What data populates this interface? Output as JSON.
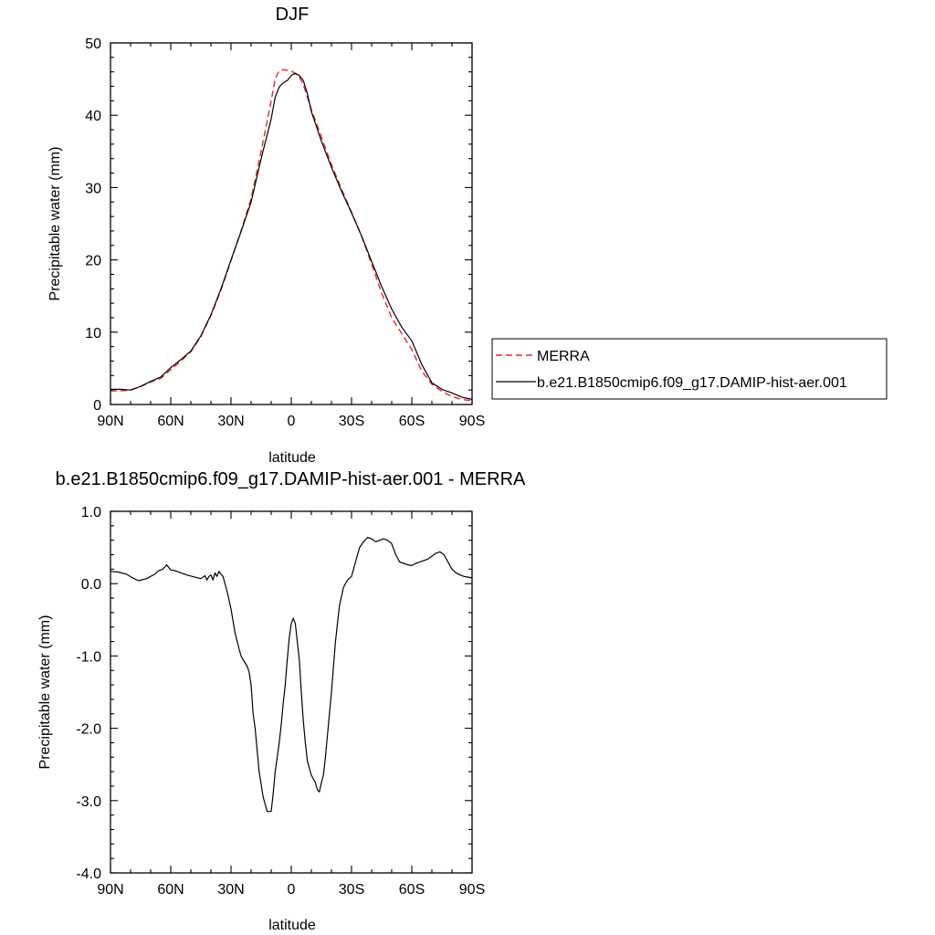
{
  "chart_data": [
    {
      "type": "line",
      "title": "DJF",
      "xlabel": "latitude",
      "ylabel": "Precipitable water (mm)",
      "xlim": [
        90,
        -90
      ],
      "ylim": [
        0,
        50
      ],
      "xticks": [
        90,
        60,
        30,
        0,
        -30,
        -60,
        -90
      ],
      "xtick_labels": [
        "90N",
        "60N",
        "30N",
        "0",
        "30S",
        "60S",
        "90S"
      ],
      "yticks": [
        0,
        10,
        20,
        30,
        40,
        50
      ],
      "ytick_labels": [
        "0",
        "10",
        "20",
        "30",
        "40",
        "50"
      ],
      "legend_position": "right",
      "series": [
        {
          "name": "MERRA",
          "color": "#e8262a",
          "dash": "dashed",
          "x": [
            90,
            85,
            80,
            75,
            70,
            65,
            60,
            55,
            50,
            45,
            40,
            35,
            30,
            25,
            20,
            15,
            10,
            8,
            6,
            4,
            2,
            0,
            -2,
            -4,
            -6,
            -8,
            -10,
            -15,
            -20,
            -25,
            -30,
            -35,
            -40,
            -45,
            -50,
            -55,
            -60,
            -65,
            -70,
            -75,
            -80,
            -85,
            -90
          ],
          "values": [
            1.9,
            1.9,
            2.0,
            2.5,
            3.1,
            3.6,
            4.8,
            6.0,
            7.3,
            9.4,
            12.3,
            15.8,
            19.9,
            24.0,
            28.5,
            35.0,
            42.0,
            45.0,
            46.2,
            46.3,
            46.2,
            46.1,
            45.8,
            45.3,
            44.2,
            42.5,
            40.8,
            37.0,
            33.2,
            29.8,
            26.6,
            23.3,
            19.4,
            15.4,
            12.0,
            9.8,
            7.6,
            4.6,
            2.8,
            1.8,
            1.1,
            0.7,
            0.5
          ]
        },
        {
          "name": "b.e21.B1850cmip6.f09_g17.DAMIP-hist-aer.001",
          "color": "#000000",
          "dash": "solid",
          "x": [
            90,
            85,
            80,
            75,
            70,
            65,
            60,
            55,
            50,
            45,
            40,
            35,
            30,
            25,
            20,
            15,
            10,
            8,
            6,
            4,
            2,
            0,
            -2,
            -4,
            -6,
            -8,
            -10,
            -15,
            -20,
            -25,
            -30,
            -35,
            -40,
            -45,
            -50,
            -55,
            -60,
            -65,
            -70,
            -75,
            -80,
            -85,
            -90
          ],
          "values": [
            2.1,
            2.1,
            2.0,
            2.5,
            3.2,
            3.8,
            5.1,
            6.2,
            7.4,
            9.5,
            12.4,
            16.0,
            20.0,
            23.9,
            28.0,
            34.0,
            39.5,
            42.5,
            43.9,
            44.5,
            44.8,
            45.5,
            45.8,
            45.5,
            44.8,
            43.0,
            40.5,
            36.4,
            32.8,
            29.5,
            26.5,
            23.3,
            19.8,
            16.3,
            13.2,
            10.7,
            8.8,
            5.5,
            3.0,
            2.1,
            1.6,
            1.0,
            0.7
          ]
        }
      ]
    },
    {
      "type": "line",
      "title": "b.e21.B1850cmip6.f09_g17.DAMIP-hist-aer.001 - MERRA",
      "xlabel": "latitude",
      "ylabel": "Precipitable water (mm)",
      "xlim": [
        90,
        -90
      ],
      "ylim": [
        -4.0,
        1.0
      ],
      "xticks": [
        90,
        60,
        30,
        0,
        -30,
        -60,
        -90
      ],
      "xtick_labels": [
        "90N",
        "60N",
        "30N",
        "0",
        "30S",
        "60S",
        "90S"
      ],
      "yticks": [
        -4.0,
        -3.0,
        -2.0,
        -1.0,
        0.0,
        1.0
      ],
      "ytick_labels": [
        "-4.0",
        "-3.0",
        "-2.0",
        "-1.0",
        "0.0",
        "1.0"
      ],
      "series": [
        {
          "color": "#000000",
          "dash": "solid",
          "x": [
            90,
            86,
            82,
            79,
            76,
            72,
            68,
            66,
            64,
            62,
            60,
            58,
            55,
            52,
            48,
            45,
            43,
            42,
            41,
            40,
            39,
            38,
            37,
            36,
            35,
            34,
            32,
            30,
            28,
            26,
            25,
            24,
            22,
            21,
            20,
            19,
            18,
            16,
            14,
            12,
            10,
            9,
            8,
            7,
            6,
            5,
            4,
            3,
            2,
            1,
            0,
            -1,
            -2,
            -3,
            -4,
            -5,
            -6,
            -7,
            -8,
            -9,
            -10,
            -11,
            -12,
            -13,
            -14,
            -15,
            -16,
            -17,
            -18,
            -19,
            -20,
            -22,
            -24,
            -26,
            -28,
            -30,
            -32,
            -34,
            -36,
            -38,
            -40,
            -42,
            -44,
            -46,
            -48,
            -50,
            -52,
            -54,
            -56,
            -58,
            -60,
            -62,
            -64,
            -66,
            -68,
            -70,
            -72,
            -74,
            -76,
            -78,
            -80,
            -82,
            -84,
            -86,
            -88,
            -90
          ],
          "values": [
            0.17,
            0.16,
            0.13,
            0.08,
            0.04,
            0.07,
            0.13,
            0.18,
            0.2,
            0.26,
            0.19,
            0.18,
            0.15,
            0.12,
            0.09,
            0.07,
            0.11,
            0.05,
            0.1,
            0.12,
            0.05,
            0.15,
            0.1,
            0.17,
            0.13,
            0.1,
            -0.1,
            -0.35,
            -0.68,
            -0.9,
            -1.0,
            -1.05,
            -1.14,
            -1.22,
            -1.4,
            -1.8,
            -2.0,
            -2.6,
            -2.95,
            -3.15,
            -3.15,
            -2.9,
            -2.6,
            -2.4,
            -2.2,
            -1.95,
            -1.65,
            -1.4,
            -1.05,
            -0.75,
            -0.55,
            -0.48,
            -0.55,
            -0.8,
            -1.05,
            -1.5,
            -1.9,
            -2.2,
            -2.45,
            -2.55,
            -2.65,
            -2.7,
            -2.75,
            -2.85,
            -2.88,
            -2.75,
            -2.65,
            -2.4,
            -2.1,
            -1.8,
            -1.5,
            -0.8,
            -0.3,
            -0.05,
            0.05,
            0.1,
            0.3,
            0.5,
            0.58,
            0.64,
            0.62,
            0.58,
            0.6,
            0.62,
            0.6,
            0.55,
            0.4,
            0.3,
            0.28,
            0.26,
            0.25,
            0.28,
            0.3,
            0.32,
            0.34,
            0.38,
            0.42,
            0.44,
            0.4,
            0.3,
            0.2,
            0.15,
            0.12,
            0.1,
            0.09,
            0.08
          ]
        }
      ]
    }
  ]
}
